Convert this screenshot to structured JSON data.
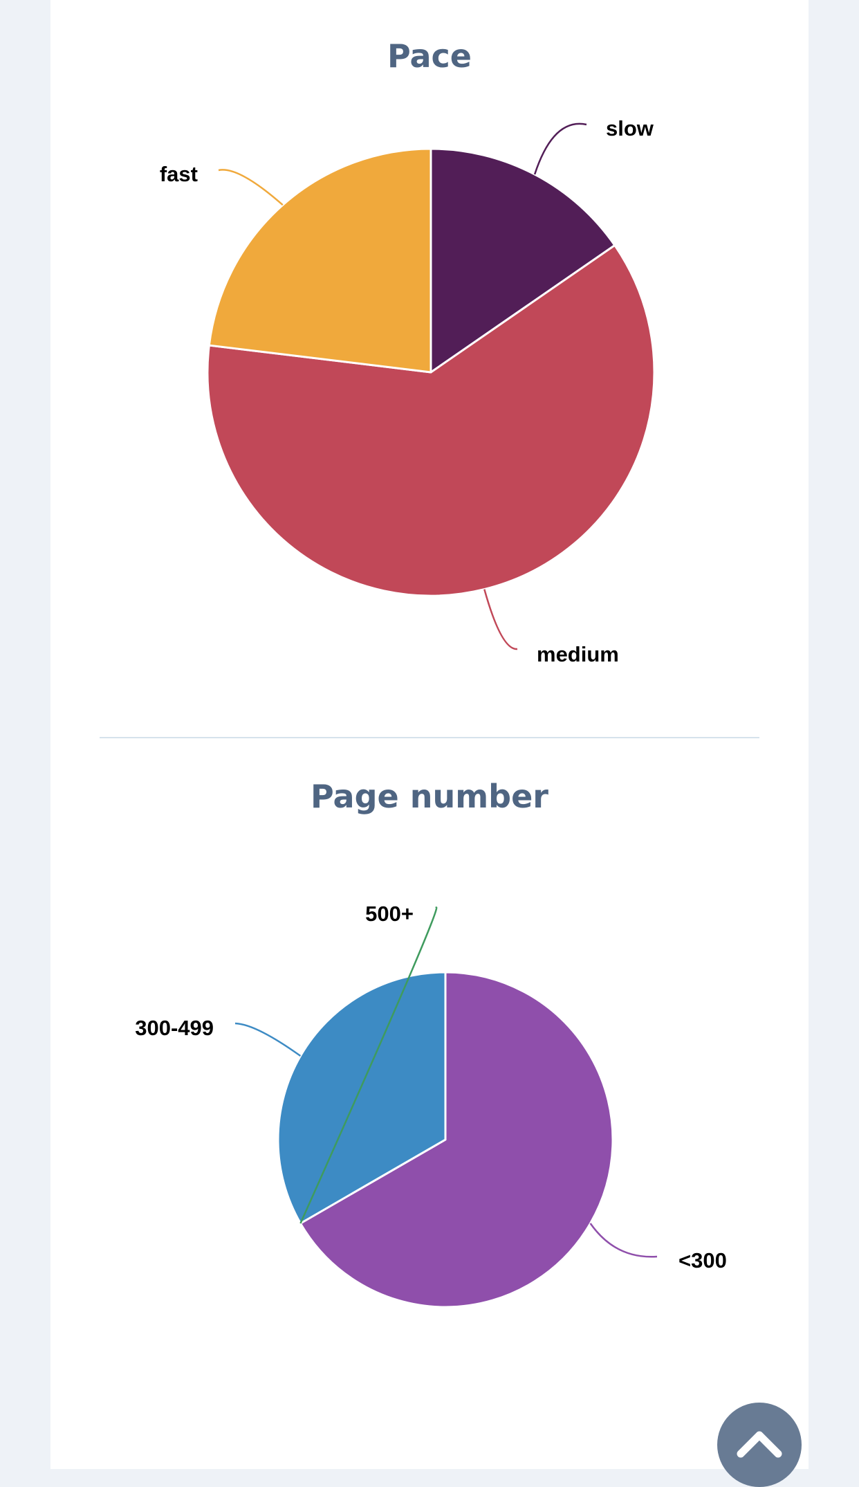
{
  "chart_data": [
    {
      "type": "pie",
      "title": "Pace",
      "categories": [
        "slow",
        "medium",
        "fast"
      ],
      "values": [
        1,
        4,
        1.5
      ],
      "colors": [
        "#521e57",
        "#c14858",
        "#f0a93c"
      ]
    },
    {
      "type": "pie",
      "title": "Page number",
      "categories": [
        "<300",
        "500+",
        "300-499"
      ],
      "values": [
        2,
        0,
        1
      ],
      "colors": [
        "#8f4fab",
        "#3f9b5e",
        "#3d8bc4"
      ]
    }
  ],
  "scroll_top": {
    "icon": "chevron-up-icon"
  }
}
